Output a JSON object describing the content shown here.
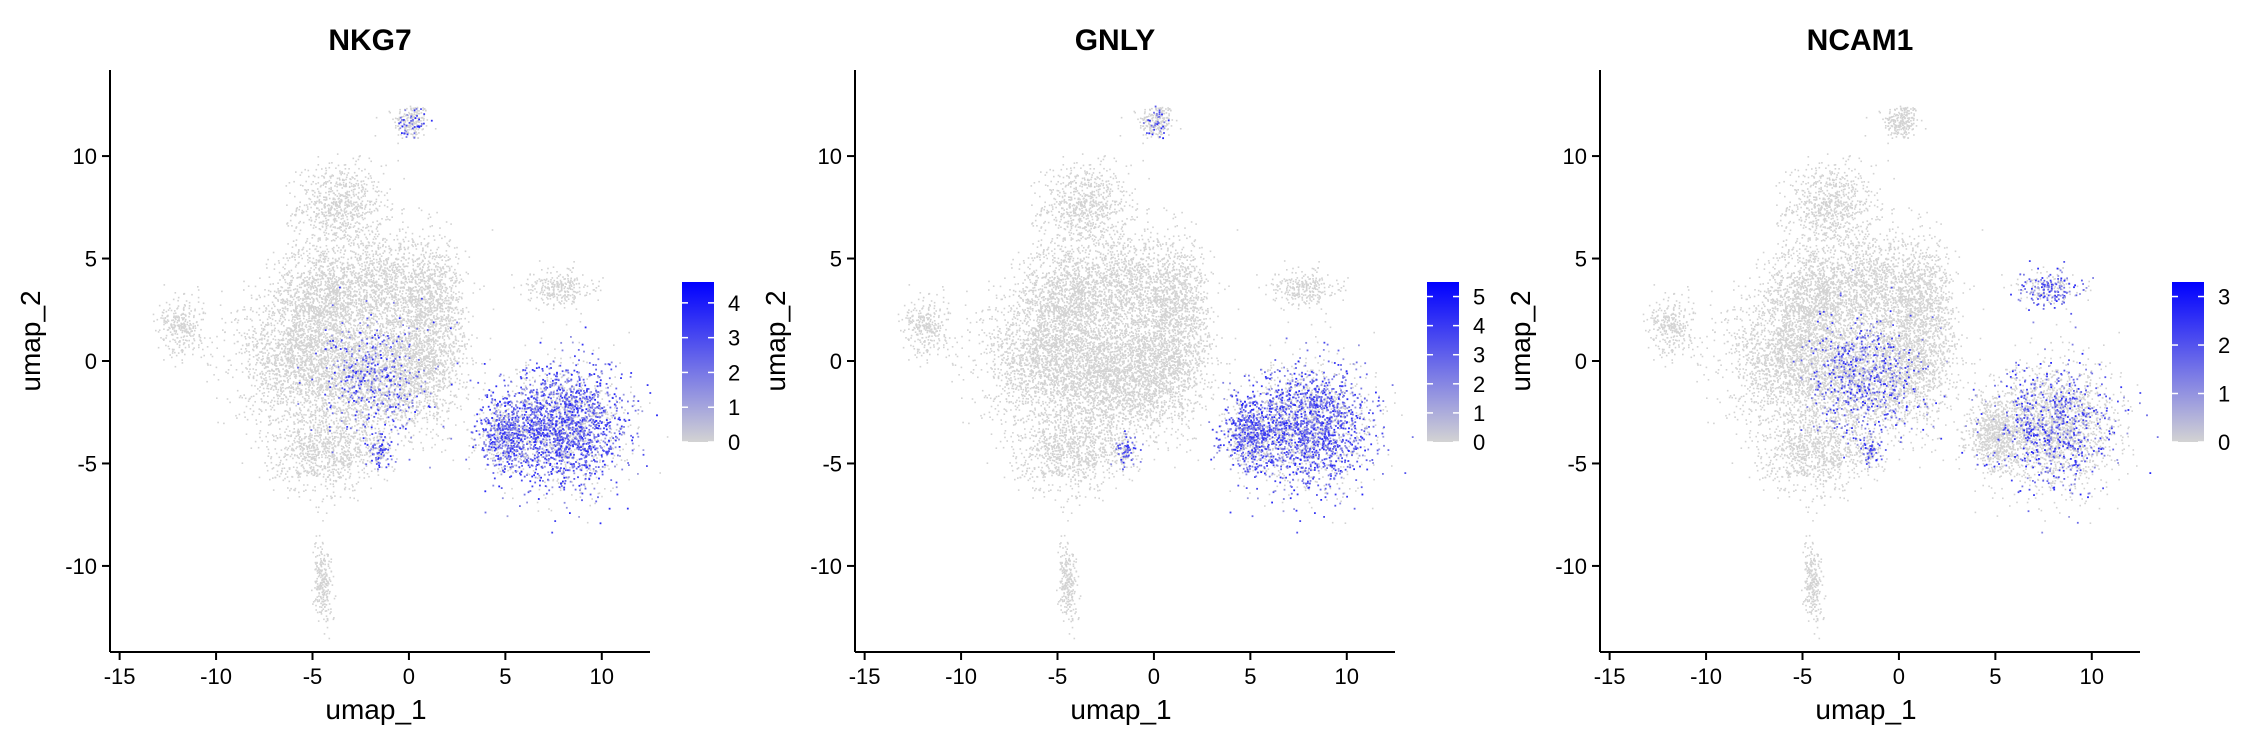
{
  "chart_data": [
    {
      "type": "scatter",
      "title": "NKG7",
      "xlabel": "umap_1",
      "ylabel": "umap_2",
      "xlim": [
        -15.5,
        12.5
      ],
      "ylim": [
        -14.2,
        14.2
      ],
      "xticks": [
        -15,
        -10,
        -5,
        0,
        5,
        10
      ],
      "yticks": [
        -10,
        -5,
        0,
        5,
        10
      ],
      "colorbar": {
        "min": 0,
        "max": 4.6,
        "ticks": [
          0,
          1,
          2,
          3,
          4
        ],
        "low_color": "#d3d3d3",
        "high_color": "#0000ff"
      },
      "highlight": [
        {
          "region": "NK-left",
          "level": 0.55
        },
        {
          "region": "NK-right",
          "level": 0.6
        },
        {
          "region": "small",
          "level": 0.5
        },
        {
          "region": "T-core",
          "level": 0.22
        },
        {
          "region": "top",
          "level": 0.18
        }
      ]
    },
    {
      "type": "scatter",
      "title": "GNLY",
      "xlabel": "umap_1",
      "ylabel": "umap_2",
      "xlim": [
        -15.5,
        12.5
      ],
      "ylim": [
        -14.2,
        14.2
      ],
      "xticks": [
        -15,
        -10,
        -5,
        0,
        5,
        10
      ],
      "yticks": [
        -10,
        -5,
        0,
        5,
        10
      ],
      "colorbar": {
        "min": 0,
        "max": 5.5,
        "ticks": [
          0,
          1,
          2,
          3,
          4,
          5
        ],
        "low_color": "#d3d3d3",
        "high_color": "#0000ff"
      },
      "highlight": [
        {
          "region": "NK-left",
          "level": 0.6
        },
        {
          "region": "NK-right",
          "level": 0.55
        },
        {
          "region": "small",
          "level": 0.5
        },
        {
          "region": "top",
          "level": 0.15
        }
      ]
    },
    {
      "type": "scatter",
      "title": "NCAM1",
      "xlabel": "umap_1",
      "ylabel": "umap_2",
      "xlim": [
        -15.5,
        12.5
      ],
      "ylim": [
        -14.2,
        14.2
      ],
      "xticks": [
        -15,
        -10,
        -5,
        0,
        5,
        10
      ],
      "yticks": [
        -10,
        -5,
        0,
        5,
        10
      ],
      "colorbar": {
        "min": 0,
        "max": 3.3,
        "ticks": [
          0,
          1,
          2,
          3
        ],
        "low_color": "#d3d3d3",
        "high_color": "#0000ff"
      },
      "highlight": [
        {
          "region": "right-upper",
          "level": 0.55
        },
        {
          "region": "T-core",
          "level": 0.3
        },
        {
          "region": "small",
          "level": 0.35
        },
        {
          "region": "NK-right",
          "level": 0.25
        }
      ]
    }
  ]
}
